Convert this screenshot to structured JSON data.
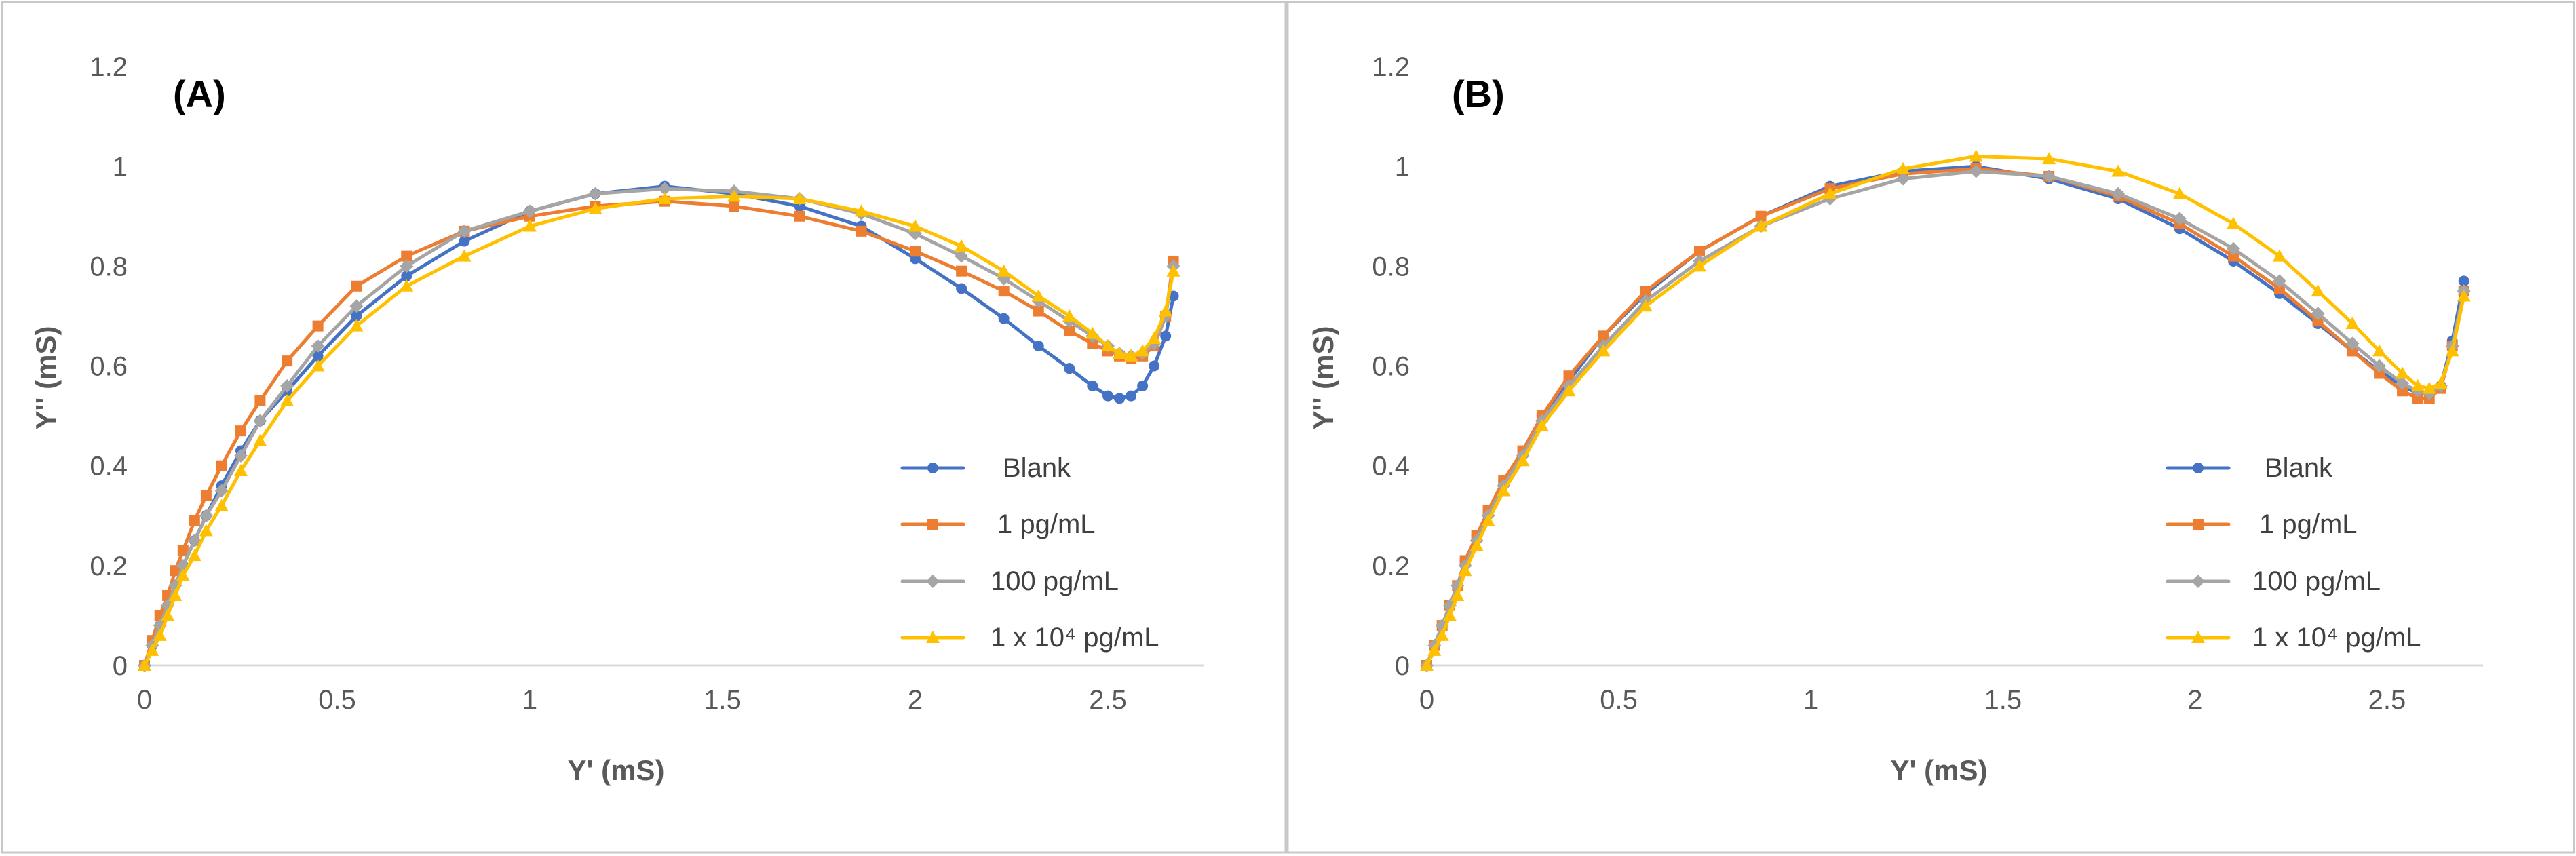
{
  "chart_data": [
    {
      "type": "line",
      "panel_label": "(A)",
      "xlabel": "Y' (mS)",
      "ylabel": "Y'' (mS)",
      "xlim": [
        0,
        2.75
      ],
      "ylim": [
        0,
        1.2
      ],
      "x_ticks": [
        "0",
        "0.5",
        "1",
        "1.5",
        "2",
        "2.5"
      ],
      "y_ticks": [
        "0",
        "0.2",
        "0.4",
        "0.6",
        "0.8",
        "1",
        "1.2"
      ],
      "legend_position": "bottom-right",
      "series": [
        {
          "name": "Blank",
          "color": "#4472C4",
          "marker": "circle",
          "x": [
            0,
            0.02,
            0.04,
            0.06,
            0.08,
            0.1,
            0.13,
            0.16,
            0.2,
            0.25,
            0.3,
            0.37,
            0.45,
            0.55,
            0.68,
            0.83,
            1.0,
            1.17,
            1.35,
            1.53,
            1.7,
            1.86,
            2.0,
            2.12,
            2.23,
            2.32,
            2.4,
            2.46,
            2.5,
            2.53,
            2.56,
            2.59,
            2.62,
            2.65,
            2.67
          ],
          "y": [
            0,
            0.04,
            0.08,
            0.12,
            0.16,
            0.2,
            0.25,
            0.3,
            0.36,
            0.43,
            0.49,
            0.55,
            0.62,
            0.7,
            0.78,
            0.85,
            0.91,
            0.945,
            0.96,
            0.945,
            0.92,
            0.88,
            0.815,
            0.755,
            0.695,
            0.64,
            0.595,
            0.56,
            0.54,
            0.535,
            0.54,
            0.56,
            0.6,
            0.66,
            0.74
          ]
        },
        {
          "name": "1 pg/mL",
          "color": "#ED7D31",
          "marker": "square",
          "x": [
            0,
            0.02,
            0.04,
            0.06,
            0.08,
            0.1,
            0.13,
            0.16,
            0.2,
            0.25,
            0.3,
            0.37,
            0.45,
            0.55,
            0.68,
            0.83,
            1.0,
            1.17,
            1.35,
            1.53,
            1.7,
            1.86,
            2.0,
            2.12,
            2.23,
            2.32,
            2.4,
            2.46,
            2.5,
            2.53,
            2.56,
            2.59,
            2.62,
            2.65,
            2.67
          ],
          "y": [
            0,
            0.05,
            0.1,
            0.14,
            0.19,
            0.23,
            0.29,
            0.34,
            0.4,
            0.47,
            0.53,
            0.61,
            0.68,
            0.76,
            0.82,
            0.87,
            0.9,
            0.92,
            0.93,
            0.92,
            0.9,
            0.87,
            0.83,
            0.79,
            0.75,
            0.71,
            0.67,
            0.645,
            0.63,
            0.62,
            0.615,
            0.62,
            0.64,
            0.7,
            0.81
          ]
        },
        {
          "name": "100 pg/mL",
          "color": "#A5A5A5",
          "marker": "diamond",
          "x": [
            0,
            0.02,
            0.04,
            0.06,
            0.08,
            0.1,
            0.13,
            0.16,
            0.2,
            0.25,
            0.3,
            0.37,
            0.45,
            0.55,
            0.68,
            0.83,
            1.0,
            1.17,
            1.35,
            1.53,
            1.7,
            1.86,
            2.0,
            2.12,
            2.23,
            2.32,
            2.4,
            2.46,
            2.5,
            2.53,
            2.56,
            2.59,
            2.62,
            2.65,
            2.67
          ],
          "y": [
            0,
            0.04,
            0.08,
            0.12,
            0.16,
            0.2,
            0.25,
            0.3,
            0.35,
            0.42,
            0.49,
            0.56,
            0.64,
            0.72,
            0.8,
            0.87,
            0.91,
            0.945,
            0.955,
            0.95,
            0.935,
            0.905,
            0.865,
            0.82,
            0.775,
            0.73,
            0.69,
            0.66,
            0.64,
            0.625,
            0.62,
            0.625,
            0.645,
            0.7,
            0.8
          ]
        },
        {
          "name": "1 x 10⁴ pg/mL",
          "color": "#FFC000",
          "marker": "triangle",
          "x": [
            0,
            0.02,
            0.04,
            0.06,
            0.08,
            0.1,
            0.13,
            0.16,
            0.2,
            0.25,
            0.3,
            0.37,
            0.45,
            0.55,
            0.68,
            0.83,
            1.0,
            1.17,
            1.35,
            1.53,
            1.7,
            1.86,
            2.0,
            2.12,
            2.23,
            2.32,
            2.4,
            2.46,
            2.5,
            2.53,
            2.56,
            2.59,
            2.62,
            2.65,
            2.67
          ],
          "y": [
            0,
            0.03,
            0.06,
            0.1,
            0.14,
            0.18,
            0.22,
            0.27,
            0.32,
            0.39,
            0.45,
            0.53,
            0.6,
            0.68,
            0.76,
            0.82,
            0.88,
            0.915,
            0.935,
            0.94,
            0.935,
            0.91,
            0.88,
            0.84,
            0.79,
            0.74,
            0.7,
            0.665,
            0.64,
            0.625,
            0.62,
            0.63,
            0.655,
            0.71,
            0.79
          ]
        }
      ]
    },
    {
      "type": "line",
      "panel_label": "(B)",
      "xlabel": "Y' (mS)",
      "ylabel": "Y'' (mS)",
      "xlim": [
        0,
        2.75
      ],
      "ylim": [
        0,
        1.2
      ],
      "x_ticks": [
        "0",
        "0.5",
        "1",
        "1.5",
        "2",
        "2.5"
      ],
      "y_ticks": [
        "0",
        "0.2",
        "0.4",
        "0.6",
        "0.8",
        "1",
        "1.2"
      ],
      "legend_position": "bottom-right",
      "series": [
        {
          "name": "Blank",
          "color": "#4472C4",
          "marker": "circle",
          "x": [
            0,
            0.02,
            0.04,
            0.06,
            0.08,
            0.1,
            0.13,
            0.16,
            0.2,
            0.25,
            0.3,
            0.37,
            0.46,
            0.57,
            0.71,
            0.87,
            1.05,
            1.24,
            1.43,
            1.62,
            1.8,
            1.96,
            2.1,
            2.22,
            2.32,
            2.41,
            2.48,
            2.54,
            2.58,
            2.61,
            2.64,
            2.67,
            2.7
          ],
          "y": [
            0,
            0.04,
            0.08,
            0.12,
            0.16,
            0.21,
            0.26,
            0.31,
            0.37,
            0.43,
            0.5,
            0.57,
            0.66,
            0.745,
            0.83,
            0.9,
            0.96,
            0.99,
            1.0,
            0.975,
            0.935,
            0.875,
            0.81,
            0.745,
            0.685,
            0.63,
            0.59,
            0.56,
            0.545,
            0.545,
            0.56,
            0.65,
            0.77
          ]
        },
        {
          "name": "1 pg/mL",
          "color": "#ED7D31",
          "marker": "square",
          "x": [
            0,
            0.02,
            0.04,
            0.06,
            0.08,
            0.1,
            0.13,
            0.16,
            0.2,
            0.25,
            0.3,
            0.37,
            0.46,
            0.57,
            0.71,
            0.87,
            1.05,
            1.24,
            1.43,
            1.62,
            1.8,
            1.96,
            2.1,
            2.22,
            2.32,
            2.41,
            2.48,
            2.54,
            2.58,
            2.61,
            2.64,
            2.67,
            2.7
          ],
          "y": [
            0,
            0.04,
            0.08,
            0.12,
            0.16,
            0.21,
            0.26,
            0.31,
            0.37,
            0.43,
            0.5,
            0.58,
            0.66,
            0.75,
            0.83,
            0.9,
            0.955,
            0.985,
            0.995,
            0.98,
            0.94,
            0.885,
            0.82,
            0.755,
            0.69,
            0.63,
            0.585,
            0.55,
            0.535,
            0.535,
            0.555,
            0.64,
            0.75
          ]
        },
        {
          "name": "100 pg/mL",
          "color": "#A5A5A5",
          "marker": "diamond",
          "x": [
            0,
            0.02,
            0.04,
            0.06,
            0.08,
            0.1,
            0.13,
            0.16,
            0.2,
            0.25,
            0.3,
            0.37,
            0.46,
            0.57,
            0.71,
            0.87,
            1.05,
            1.24,
            1.43,
            1.62,
            1.8,
            1.96,
            2.1,
            2.22,
            2.32,
            2.41,
            2.48,
            2.54,
            2.58,
            2.61,
            2.64,
            2.67,
            2.7
          ],
          "y": [
            0,
            0.04,
            0.08,
            0.12,
            0.16,
            0.2,
            0.25,
            0.3,
            0.36,
            0.42,
            0.49,
            0.56,
            0.64,
            0.73,
            0.81,
            0.88,
            0.935,
            0.975,
            0.99,
            0.98,
            0.945,
            0.895,
            0.835,
            0.77,
            0.705,
            0.645,
            0.6,
            0.565,
            0.55,
            0.545,
            0.56,
            0.64,
            0.75
          ]
        },
        {
          "name": "1 x 10⁴ pg/mL",
          "color": "#FFC000",
          "marker": "triangle",
          "x": [
            0,
            0.02,
            0.04,
            0.06,
            0.08,
            0.1,
            0.13,
            0.16,
            0.2,
            0.25,
            0.3,
            0.37,
            0.46,
            0.57,
            0.71,
            0.87,
            1.05,
            1.24,
            1.43,
            1.62,
            1.8,
            1.96,
            2.1,
            2.22,
            2.32,
            2.41,
            2.48,
            2.54,
            2.58,
            2.61,
            2.64,
            2.67,
            2.7
          ],
          "y": [
            0,
            0.03,
            0.06,
            0.1,
            0.14,
            0.19,
            0.24,
            0.29,
            0.35,
            0.41,
            0.48,
            0.55,
            0.63,
            0.72,
            0.8,
            0.88,
            0.945,
            0.995,
            1.02,
            1.015,
            0.99,
            0.945,
            0.885,
            0.82,
            0.75,
            0.685,
            0.63,
            0.585,
            0.56,
            0.555,
            0.565,
            0.63,
            0.74
          ]
        }
      ]
    }
  ]
}
